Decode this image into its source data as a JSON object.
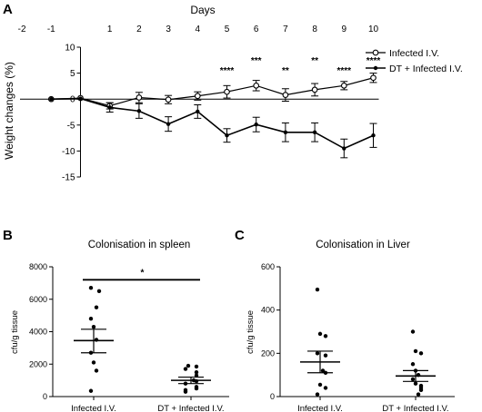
{
  "panels": {
    "a": "A",
    "b": "B",
    "c": "C"
  },
  "chart_data": [
    {
      "type": "line",
      "panel": "A",
      "title": "Days",
      "ylabel": "Weight changes (%)",
      "x_ticks": [
        "-2",
        "-1",
        "1",
        "2",
        "3",
        "4",
        "5",
        "6",
        "7",
        "8",
        "9",
        "10"
      ],
      "ylim": [
        -15,
        10
      ],
      "y_ticks": [
        "10",
        "5",
        "0",
        "-5",
        "-10",
        "-15"
      ],
      "legend": [
        "Infected I.V.",
        "DT + Infected I.V."
      ],
      "legend_position": "right",
      "series": [
        {
          "name": "Infected I.V.",
          "marker": "open-circle",
          "x": [
            -1,
            0,
            1,
            2,
            3,
            4,
            5,
            6,
            7,
            8,
            9,
            10
          ],
          "y": [
            0,
            0.2,
            -1.3,
            0.3,
            -0.1,
            0.6,
            1.4,
            2.6,
            0.8,
            1.8,
            2.6,
            4.1
          ],
          "err": [
            0,
            0,
            0.6,
            1.0,
            0.8,
            0.8,
            1.2,
            1.0,
            1.2,
            1.2,
            0.8,
            0.9
          ]
        },
        {
          "name": "DT + Infected I.V.",
          "marker": "filled-circle",
          "x": [
            -1,
            0,
            1,
            2,
            3,
            4,
            5,
            6,
            7,
            8,
            9,
            10
          ],
          "y": [
            0,
            0.1,
            -1.6,
            -2.3,
            -4.8,
            -2.4,
            -7.0,
            -4.9,
            -6.4,
            -6.4,
            -9.5,
            -7.0
          ],
          "err": [
            0,
            0,
            0.9,
            1.4,
            1.4,
            1.3,
            1.3,
            1.4,
            1.8,
            1.8,
            1.8,
            2.3
          ]
        }
      ],
      "annotations": [
        {
          "x": 5,
          "text": "****"
        },
        {
          "x": 6,
          "text": "***"
        },
        {
          "x": 7,
          "text": "**"
        },
        {
          "x": 8,
          "text": "**"
        },
        {
          "x": 9,
          "text": "****"
        },
        {
          "x": 10,
          "text": "****"
        }
      ]
    },
    {
      "type": "scatter",
      "panel": "B",
      "title": "Colonisation in spleen",
      "ylabel": "cfu/g tissue",
      "ylim": [
        0,
        8000
      ],
      "y_ticks": [
        "8000",
        "6000",
        "4000",
        "2000",
        "0"
      ],
      "categories": [
        "Infected I.V.",
        "DT + Infected I.V."
      ],
      "series": [
        {
          "category": "Infected I.V.",
          "points": [
            6700,
            6500,
            5500,
            4800,
            4300,
            3500,
            2700,
            2100,
            1600,
            350
          ],
          "mean": 3450,
          "sem_low": 2700,
          "sem_high": 4150
        },
        {
          "category": "DT + Infected I.V.",
          "points": [
            1900,
            1850,
            1700,
            1500,
            1300,
            1000,
            950,
            800,
            600,
            500,
            400,
            300
          ],
          "mean": 1000,
          "sem_low": 800,
          "sem_high": 1200
        }
      ],
      "significance": "*"
    },
    {
      "type": "scatter",
      "panel": "C",
      "title": "Colonisation in Liver",
      "ylabel": "cfu/g tissue",
      "ylim": [
        0,
        600
      ],
      "y_ticks": [
        "600",
        "400",
        "200",
        "0"
      ],
      "categories": [
        "Infected I.V.",
        "DT + Infected I.V."
      ],
      "series": [
        {
          "category": "Infected I.V.",
          "points": [
            495,
            290,
            280,
            200,
            190,
            120,
            110,
            55,
            40,
            10
          ],
          "mean": 160,
          "sem_low": 110,
          "sem_high": 210
        },
        {
          "category": "DT + Infected I.V.",
          "points": [
            300,
            210,
            200,
            150,
            120,
            100,
            80,
            60,
            50,
            40,
            30,
            10
          ],
          "mean": 95,
          "sem_low": 70,
          "sem_high": 120
        }
      ]
    }
  ]
}
